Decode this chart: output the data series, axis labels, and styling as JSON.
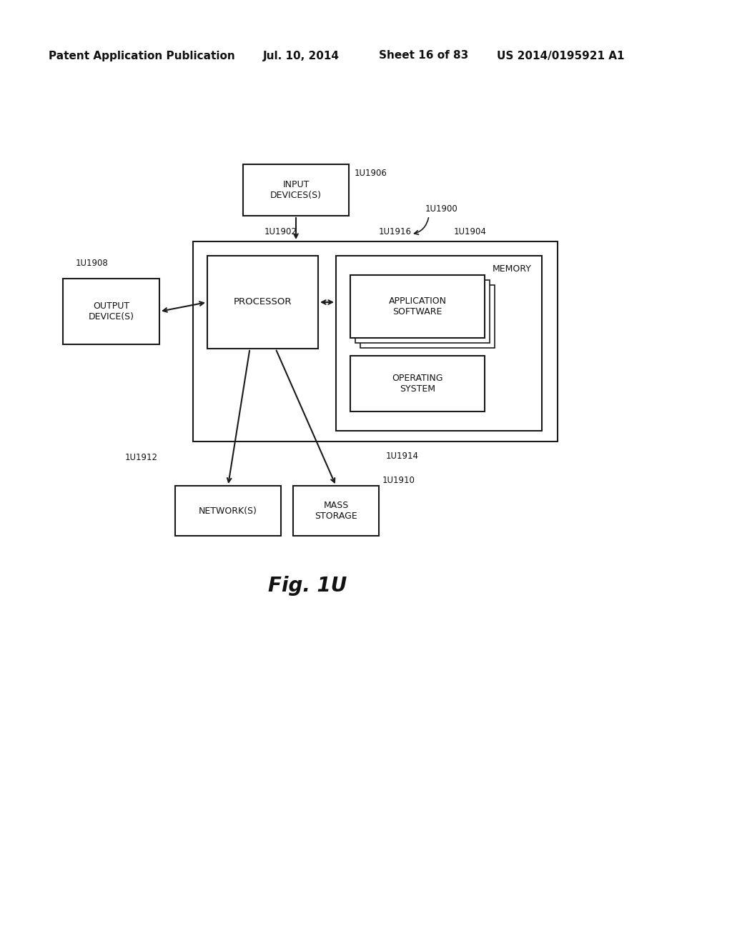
{
  "bg_color": "#ffffff",
  "header_text": "Patent Application Publication",
  "header_date": "Jul. 10, 2014",
  "header_sheet": "Sheet 16 of 83",
  "header_patent": "US 2014/0195921 A1",
  "figure_label": "Fig. 1U",
  "line_color": "#1a1a1a",
  "text_color": "#111111",
  "header_fontsize": 11,
  "label_fontsize": 9,
  "ref_fontsize": 8.5,
  "fig_label_fontsize": 20
}
